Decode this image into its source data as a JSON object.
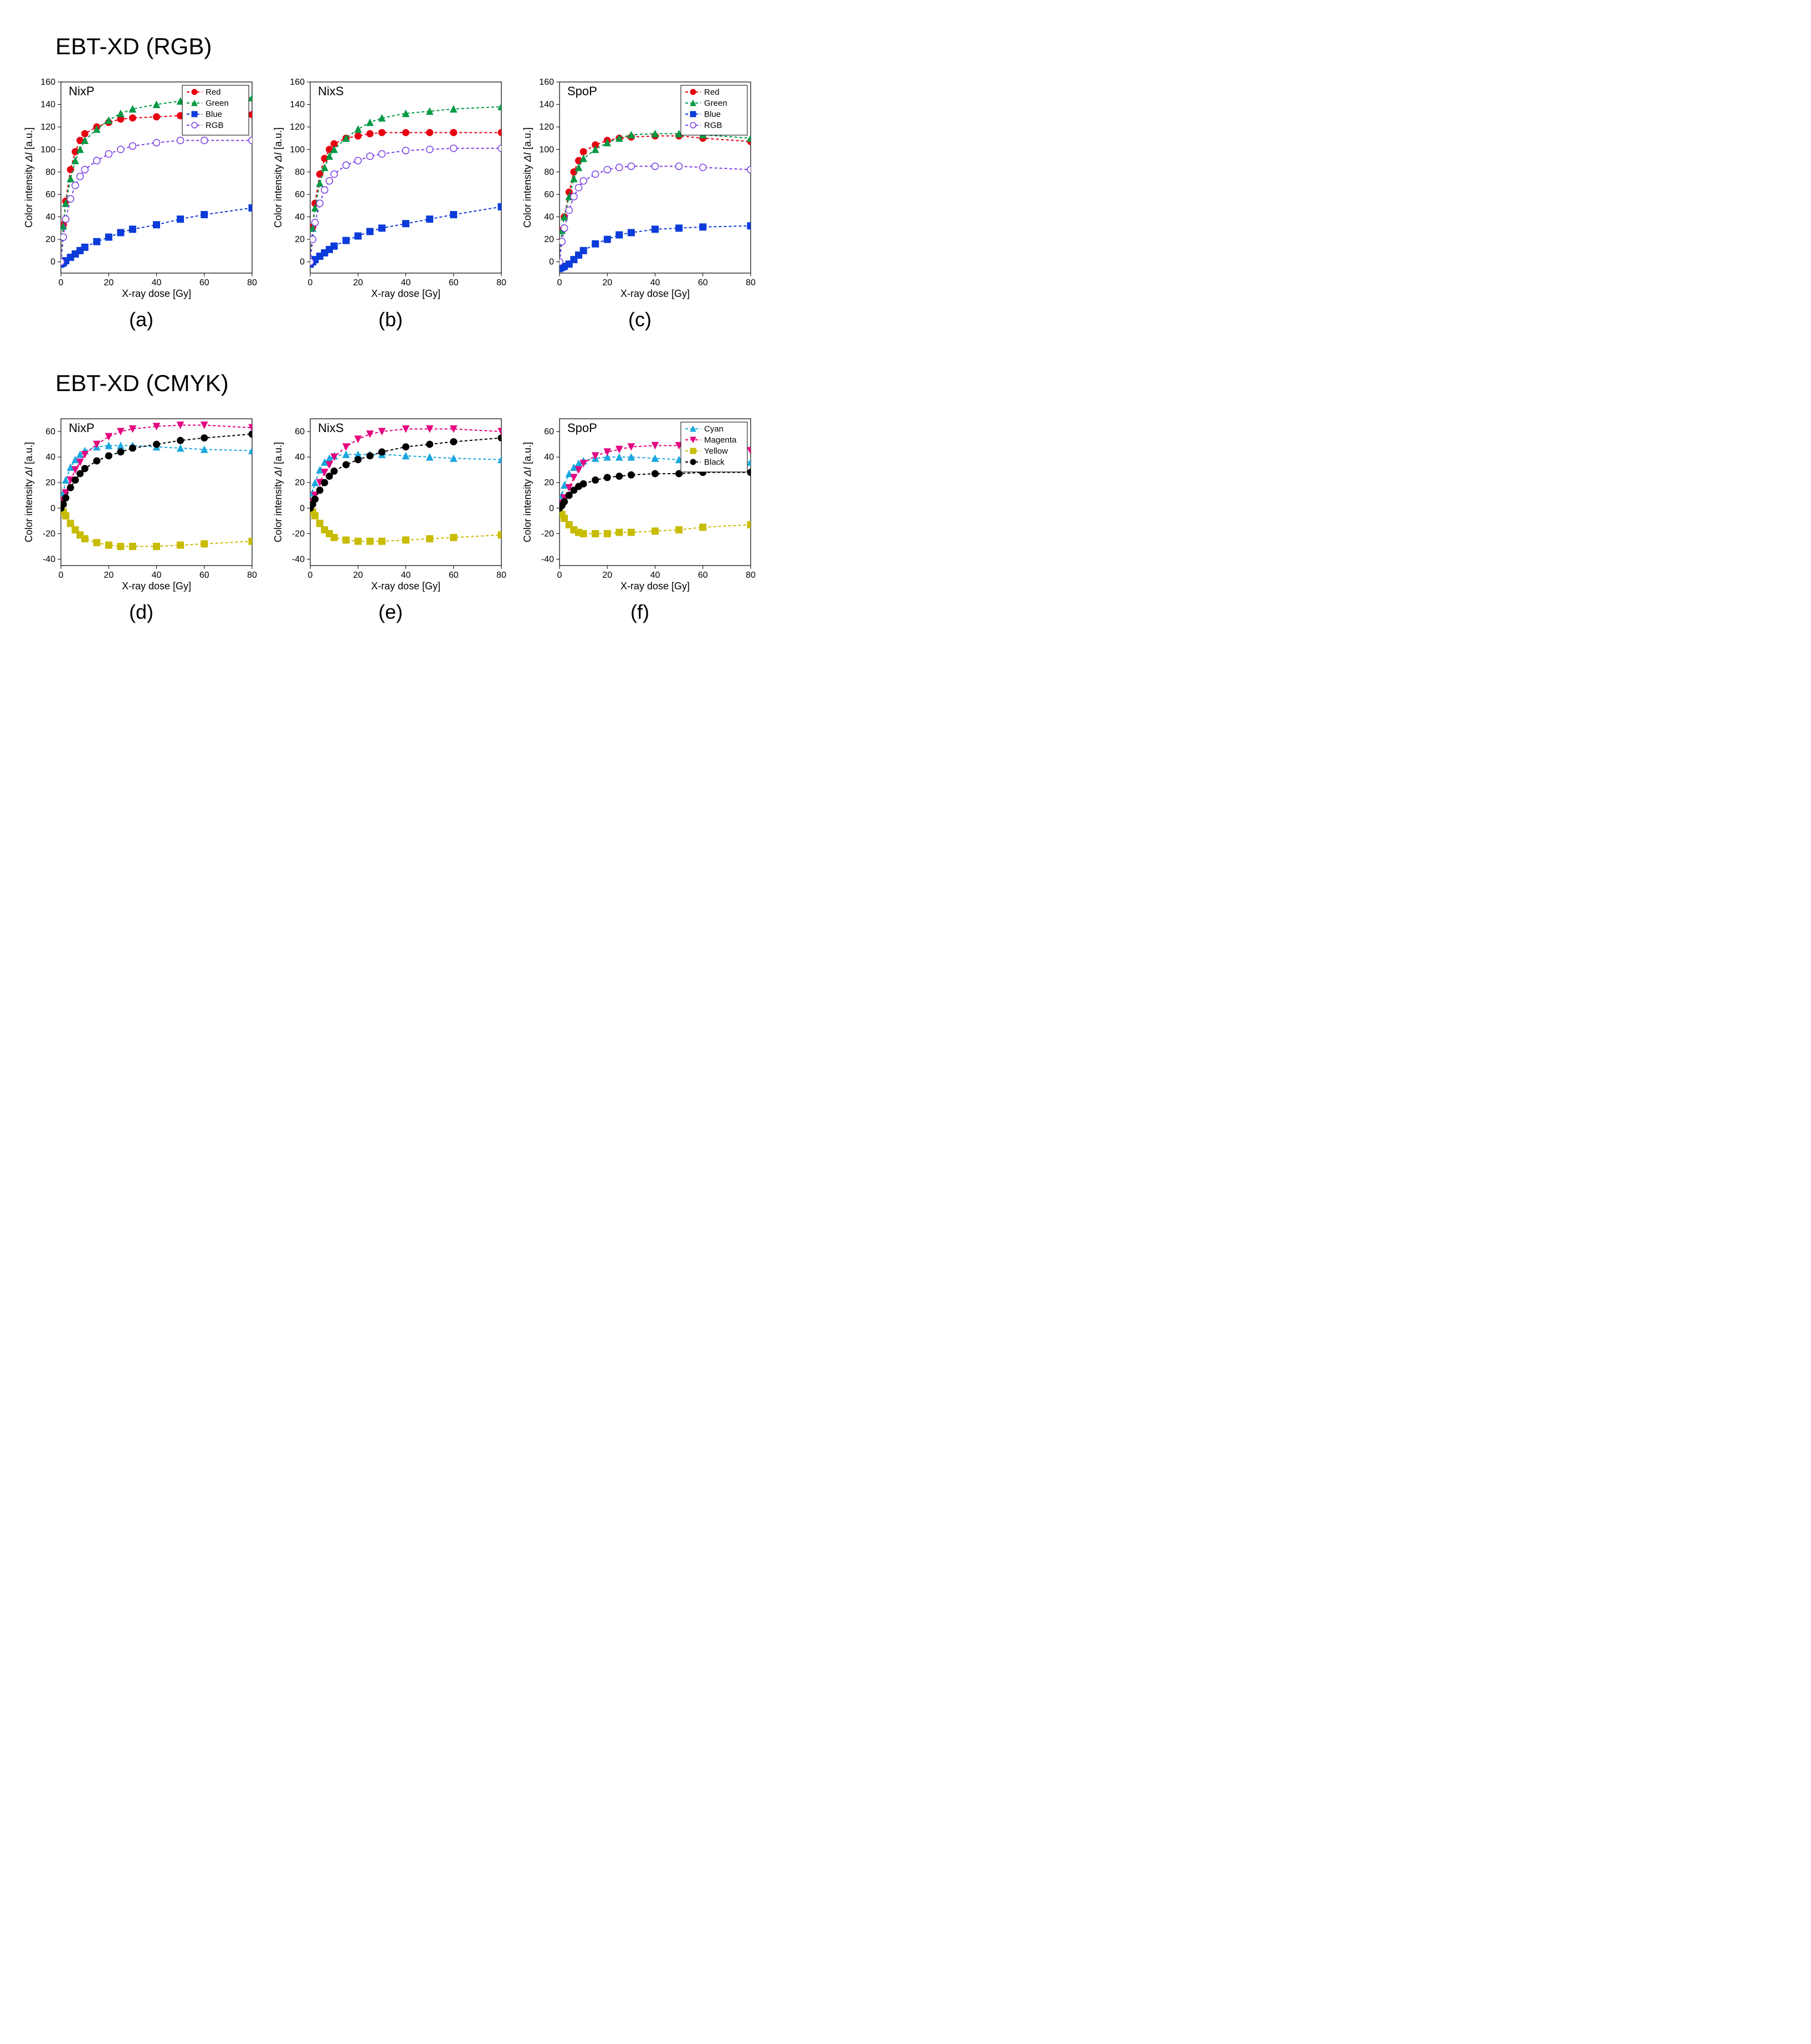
{
  "sections": {
    "rgb": {
      "title": "EBT-XD (RGB)"
    },
    "cmyk": {
      "title": "EBT-XD (CMYK)"
    }
  },
  "common": {
    "xlabel": "X-ray dose [Gy]",
    "ylabel_prefix": "Color intensity ",
    "ylabel_delta": "ΔI",
    "ylabel_suffix": " [a.u.]",
    "font": {
      "axis_label_size": 18,
      "tick_size": 16,
      "panel_label_size": 22,
      "caption_size": 36
    },
    "background_color": "#ffffff",
    "axis_color": "#000000",
    "line_width": 2,
    "marker_size": 6,
    "dash": "5,4"
  },
  "legends": {
    "rgb": [
      {
        "label": "Red",
        "color": "#e60012",
        "marker": "circle-filled"
      },
      {
        "label": "Green",
        "color": "#009944",
        "marker": "triangle-up-filled"
      },
      {
        "label": "Blue",
        "color": "#0b3bd9",
        "marker": "square-filled"
      },
      {
        "label": "RGB",
        "color": "#7b3fe4",
        "marker": "circle-open"
      }
    ],
    "cmyk": [
      {
        "label": "Cyan",
        "color": "#1aa7e0",
        "marker": "triangle-up-filled"
      },
      {
        "label": "Magenta",
        "color": "#e4007f",
        "marker": "triangle-down-filled"
      },
      {
        "label": "Yellow",
        "color": "#c8bc00",
        "marker": "square-filled"
      },
      {
        "label": "Black",
        "color": "#000000",
        "marker": "circle-filled"
      }
    ]
  },
  "charts": {
    "a": {
      "caption": "(a)",
      "panel_label": "NixP",
      "legend": "rgb",
      "xlim": [
        0,
        80
      ],
      "xticks": [
        0,
        20,
        40,
        60,
        80
      ],
      "ylim": [
        -10,
        160
      ],
      "yticks": [
        0,
        20,
        40,
        60,
        80,
        100,
        120,
        140,
        160
      ],
      "series": [
        {
          "key": "red",
          "x": [
            0,
            1,
            2,
            4,
            6,
            8,
            10,
            15,
            20,
            25,
            30,
            40,
            50,
            60,
            80
          ],
          "y": [
            0,
            33,
            54,
            82,
            98,
            108,
            114,
            120,
            124,
            127,
            128,
            129,
            130,
            130,
            131
          ]
        },
        {
          "key": "green",
          "x": [
            0,
            1,
            2,
            4,
            6,
            8,
            10,
            15,
            20,
            25,
            30,
            40,
            50,
            60,
            80
          ],
          "y": [
            0,
            32,
            52,
            74,
            90,
            100,
            108,
            118,
            126,
            132,
            136,
            140,
            143,
            145,
            146
          ]
        },
        {
          "key": "blue",
          "x": [
            0,
            1,
            2,
            4,
            6,
            8,
            10,
            15,
            20,
            25,
            30,
            40,
            50,
            60,
            80
          ],
          "y": [
            -2,
            -1,
            1,
            4,
            7,
            10,
            13,
            18,
            22,
            26,
            29,
            33,
            38,
            42,
            48
          ]
        },
        {
          "key": "rgb",
          "x": [
            0,
            1,
            2,
            4,
            6,
            8,
            10,
            15,
            20,
            25,
            30,
            40,
            50,
            60,
            80
          ],
          "y": [
            0,
            22,
            38,
            56,
            68,
            76,
            82,
            90,
            96,
            100,
            103,
            106,
            108,
            108,
            108
          ]
        }
      ],
      "colors": {
        "red": "#e60012",
        "green": "#009944",
        "blue": "#0b3bd9",
        "rgb": "#7b3fe4"
      },
      "markers": {
        "red": "circle-filled",
        "green": "triangle-up-filled",
        "blue": "square-filled",
        "rgb": "circle-open"
      }
    },
    "b": {
      "caption": "(b)",
      "panel_label": "NixS",
      "legend": null,
      "xlim": [
        0,
        80
      ],
      "xticks": [
        0,
        20,
        40,
        60,
        80
      ],
      "ylim": [
        -10,
        160
      ],
      "yticks": [
        0,
        20,
        40,
        60,
        80,
        100,
        120,
        140,
        160
      ],
      "series": [
        {
          "key": "red",
          "x": [
            0,
            1,
            2,
            4,
            6,
            8,
            10,
            15,
            20,
            25,
            30,
            40,
            50,
            60,
            80
          ],
          "y": [
            0,
            31,
            52,
            78,
            92,
            100,
            105,
            110,
            112,
            114,
            115,
            115,
            115,
            115,
            115
          ]
        },
        {
          "key": "green",
          "x": [
            0,
            1,
            2,
            4,
            6,
            8,
            10,
            15,
            20,
            25,
            30,
            40,
            50,
            60,
            80
          ],
          "y": [
            0,
            30,
            48,
            70,
            84,
            94,
            100,
            110,
            118,
            124,
            128,
            132,
            134,
            136,
            138
          ]
        },
        {
          "key": "blue",
          "x": [
            0,
            1,
            2,
            4,
            6,
            8,
            10,
            15,
            20,
            25,
            30,
            40,
            50,
            60,
            80
          ],
          "y": [
            -2,
            0,
            2,
            5,
            8,
            11,
            14,
            19,
            23,
            27,
            30,
            34,
            38,
            42,
            49
          ]
        },
        {
          "key": "rgb",
          "x": [
            0,
            1,
            2,
            4,
            6,
            8,
            10,
            15,
            20,
            25,
            30,
            40,
            50,
            60,
            80
          ],
          "y": [
            0,
            20,
            35,
            52,
            64,
            72,
            78,
            86,
            90,
            94,
            96,
            99,
            100,
            101,
            101
          ]
        }
      ],
      "colors": {
        "red": "#e60012",
        "green": "#009944",
        "blue": "#0b3bd9",
        "rgb": "#7b3fe4"
      },
      "markers": {
        "red": "circle-filled",
        "green": "triangle-up-filled",
        "blue": "square-filled",
        "rgb": "circle-open"
      }
    },
    "c": {
      "caption": "(c)",
      "panel_label": "SpoP",
      "legend": "rgb",
      "xlim": [
        0,
        80
      ],
      "xticks": [
        0,
        20,
        40,
        60,
        80
      ],
      "ylim": [
        -10,
        160
      ],
      "yticks": [
        0,
        20,
        40,
        60,
        80,
        100,
        120,
        140,
        160
      ],
      "series": [
        {
          "key": "red",
          "x": [
            0,
            1,
            2,
            4,
            6,
            8,
            10,
            15,
            20,
            25,
            30,
            40,
            50,
            60,
            80
          ],
          "y": [
            0,
            28,
            40,
            62,
            80,
            90,
            98,
            104,
            108,
            110,
            111,
            112,
            112,
            110,
            107
          ]
        },
        {
          "key": "green",
          "x": [
            0,
            1,
            2,
            4,
            6,
            8,
            10,
            15,
            20,
            25,
            30,
            40,
            50,
            60,
            80
          ],
          "y": [
            0,
            28,
            40,
            58,
            74,
            84,
            92,
            100,
            106,
            110,
            113,
            114,
            114,
            113,
            110
          ]
        },
        {
          "key": "blue",
          "x": [
            0,
            1,
            2,
            4,
            6,
            8,
            10,
            15,
            20,
            25,
            30,
            40,
            50,
            60,
            80
          ],
          "y": [
            -6,
            -5,
            -4,
            -2,
            2,
            6,
            10,
            16,
            20,
            24,
            26,
            29,
            30,
            31,
            32
          ]
        },
        {
          "key": "rgb",
          "x": [
            0,
            1,
            2,
            4,
            6,
            8,
            10,
            15,
            20,
            25,
            30,
            40,
            50,
            60,
            80
          ],
          "y": [
            0,
            18,
            30,
            46,
            58,
            66,
            72,
            78,
            82,
            84,
            85,
            85,
            85,
            84,
            82
          ]
        }
      ],
      "colors": {
        "red": "#e60012",
        "green": "#009944",
        "blue": "#0b3bd9",
        "rgb": "#7b3fe4"
      },
      "markers": {
        "red": "circle-filled",
        "green": "triangle-up-filled",
        "blue": "square-filled",
        "rgb": "circle-open"
      }
    },
    "d": {
      "caption": "(d)",
      "panel_label": "NixP",
      "legend": null,
      "xlim": [
        0,
        80
      ],
      "xticks": [
        0,
        20,
        40,
        60,
        80
      ],
      "ylim": [
        -45,
        70
      ],
      "yticks": [
        -40,
        -20,
        0,
        20,
        40,
        60
      ],
      "series": [
        {
          "key": "cyan",
          "x": [
            0,
            1,
            2,
            4,
            6,
            8,
            10,
            15,
            20,
            25,
            30,
            40,
            50,
            60,
            80
          ],
          "y": [
            0,
            12,
            22,
            32,
            38,
            42,
            45,
            48,
            49,
            49,
            49,
            48,
            47,
            46,
            45
          ]
        },
        {
          "key": "magenta",
          "x": [
            0,
            1,
            2,
            4,
            6,
            8,
            10,
            15,
            20,
            25,
            30,
            40,
            50,
            60,
            80
          ],
          "y": [
            0,
            6,
            12,
            22,
            30,
            36,
            42,
            50,
            56,
            60,
            62,
            64,
            65,
            65,
            63
          ]
        },
        {
          "key": "yellow",
          "x": [
            0,
            1,
            2,
            4,
            6,
            8,
            10,
            15,
            20,
            25,
            30,
            40,
            50,
            60,
            80
          ],
          "y": [
            -1,
            -3,
            -6,
            -12,
            -17,
            -21,
            -24,
            -27,
            -29,
            -30,
            -30,
            -30,
            -29,
            -28,
            -26
          ]
        },
        {
          "key": "black",
          "x": [
            0,
            1,
            2,
            4,
            6,
            8,
            10,
            15,
            20,
            25,
            30,
            40,
            50,
            60,
            80
          ],
          "y": [
            0,
            3,
            8,
            16,
            22,
            27,
            31,
            37,
            41,
            44,
            47,
            50,
            53,
            55,
            58
          ]
        }
      ],
      "colors": {
        "cyan": "#1aa7e0",
        "magenta": "#e4007f",
        "yellow": "#c8bc00",
        "black": "#000000"
      },
      "markers": {
        "cyan": "triangle-up-filled",
        "magenta": "triangle-down-filled",
        "yellow": "square-filled",
        "black": "circle-filled"
      }
    },
    "e": {
      "caption": "(e)",
      "panel_label": "NixS",
      "legend": null,
      "xlim": [
        0,
        80
      ],
      "xticks": [
        0,
        20,
        40,
        60,
        80
      ],
      "ylim": [
        -45,
        70
      ],
      "yticks": [
        -40,
        -20,
        0,
        20,
        40,
        60
      ],
      "series": [
        {
          "key": "cyan",
          "x": [
            0,
            1,
            2,
            4,
            6,
            8,
            10,
            15,
            20,
            25,
            30,
            40,
            50,
            60,
            80
          ],
          "y": [
            0,
            12,
            20,
            30,
            36,
            39,
            41,
            42,
            42,
            42,
            42,
            41,
            40,
            39,
            38
          ]
        },
        {
          "key": "magenta",
          "x": [
            0,
            1,
            2,
            4,
            6,
            8,
            10,
            15,
            20,
            25,
            30,
            40,
            50,
            60,
            80
          ],
          "y": [
            0,
            5,
            10,
            20,
            28,
            34,
            40,
            48,
            54,
            58,
            60,
            62,
            62,
            62,
            60
          ]
        },
        {
          "key": "yellow",
          "x": [
            0,
            1,
            2,
            4,
            6,
            8,
            10,
            15,
            20,
            25,
            30,
            40,
            50,
            60,
            80
          ],
          "y": [
            -1,
            -3,
            -6,
            -12,
            -17,
            -20,
            -23,
            -25,
            -26,
            -26,
            -26,
            -25,
            -24,
            -23,
            -21
          ]
        },
        {
          "key": "black",
          "x": [
            0,
            1,
            2,
            4,
            6,
            8,
            10,
            15,
            20,
            25,
            30,
            40,
            50,
            60,
            80
          ],
          "y": [
            0,
            3,
            7,
            14,
            20,
            25,
            29,
            34,
            38,
            41,
            44,
            48,
            50,
            52,
            55
          ]
        }
      ],
      "colors": {
        "cyan": "#1aa7e0",
        "magenta": "#e4007f",
        "yellow": "#c8bc00",
        "black": "#000000"
      },
      "markers": {
        "cyan": "triangle-up-filled",
        "magenta": "triangle-down-filled",
        "yellow": "square-filled",
        "black": "circle-filled"
      }
    },
    "f": {
      "caption": "(f)",
      "panel_label": "SpoP",
      "legend": "cmyk",
      "xlim": [
        0,
        80
      ],
      "xticks": [
        0,
        20,
        40,
        60,
        80
      ],
      "ylim": [
        -45,
        70
      ],
      "yticks": [
        -40,
        -20,
        0,
        20,
        40,
        60
      ],
      "series": [
        {
          "key": "cyan",
          "x": [
            0,
            1,
            2,
            4,
            6,
            8,
            10,
            15,
            20,
            25,
            30,
            40,
            50,
            60,
            80
          ],
          "y": [
            0,
            10,
            18,
            27,
            32,
            35,
            37,
            39,
            40,
            40,
            40,
            39,
            38,
            37,
            36
          ]
        },
        {
          "key": "magenta",
          "x": [
            0,
            1,
            2,
            4,
            6,
            8,
            10,
            15,
            20,
            25,
            30,
            40,
            50,
            60,
            80
          ],
          "y": [
            0,
            4,
            8,
            16,
            24,
            30,
            35,
            41,
            44,
            46,
            48,
            49,
            49,
            48,
            45
          ]
        },
        {
          "key": "yellow",
          "x": [
            0,
            1,
            2,
            4,
            6,
            8,
            10,
            15,
            20,
            25,
            30,
            40,
            50,
            60,
            80
          ],
          "y": [
            -2,
            -5,
            -8,
            -13,
            -17,
            -19,
            -20,
            -20,
            -20,
            -19,
            -19,
            -18,
            -17,
            -15,
            -13
          ]
        },
        {
          "key": "black",
          "x": [
            0,
            1,
            2,
            4,
            6,
            8,
            10,
            15,
            20,
            25,
            30,
            40,
            50,
            60,
            80
          ],
          "y": [
            0,
            2,
            5,
            10,
            14,
            17,
            19,
            22,
            24,
            25,
            26,
            27,
            27,
            28,
            28
          ]
        }
      ],
      "colors": {
        "cyan": "#1aa7e0",
        "magenta": "#e4007f",
        "yellow": "#c8bc00",
        "black": "#000000"
      },
      "markers": {
        "cyan": "triangle-up-filled",
        "magenta": "triangle-down-filled",
        "yellow": "square-filled",
        "black": "circle-filled"
      }
    }
  }
}
